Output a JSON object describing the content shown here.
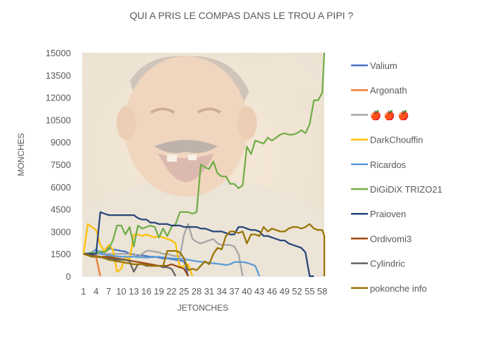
{
  "chart_data": {
    "type": "line",
    "title": "QUI A PRIS LE COMPAS DANS LE TROU A PIPI ?",
    "xlabel": "JETONCHES",
    "ylabel": "MONCHES",
    "ylim": [
      0,
      15000
    ],
    "yticks": [
      "0",
      "1500",
      "3000",
      "4500",
      "6000",
      "7500",
      "9000",
      "10500",
      "12000",
      "13500",
      "15000"
    ],
    "xtick_labels": [
      "1",
      "4",
      "7",
      "10",
      "13",
      "16",
      "19",
      "22",
      "25",
      "28",
      "31",
      "34",
      "37",
      "40",
      "43",
      "46",
      "49",
      "52",
      "55",
      "58"
    ],
    "x_range": [
      1,
      58
    ],
    "grid": false,
    "legend_position": "right",
    "background_image": "laughing-man-photo",
    "series": [
      {
        "name": "Valium",
        "color": "#4472C4",
        "points": [
          [
            1,
            1500
          ],
          [
            3,
            1500
          ],
          [
            5,
            1500
          ],
          [
            6,
            1700
          ],
          [
            7,
            1900
          ],
          [
            8,
            1800
          ],
          [
            9,
            1750
          ],
          [
            10,
            1700
          ],
          [
            11,
            1650
          ],
          [
            12,
            1500
          ],
          [
            13,
            1450
          ],
          [
            14,
            1400
          ],
          [
            15,
            1400
          ],
          [
            16,
            1350
          ],
          [
            17,
            1300
          ],
          [
            18,
            1300
          ],
          [
            19,
            1250
          ],
          [
            20,
            1200
          ],
          [
            21,
            1200
          ],
          [
            22,
            1150
          ],
          [
            23,
            1100
          ],
          [
            24,
            1050
          ],
          [
            25,
            1000
          ],
          [
            26,
            0
          ]
        ]
      },
      {
        "name": "Argonath",
        "color": "#ED7D31",
        "points": [
          [
            1,
            1500
          ],
          [
            2,
            1400
          ],
          [
            3,
            1400
          ],
          [
            4,
            1300
          ],
          [
            5,
            0
          ]
        ]
      },
      {
        "name": "🍎 🍎 🍎",
        "color": "#A5A5A5",
        "points": [
          [
            1,
            1500
          ],
          [
            4,
            1500
          ],
          [
            7,
            1500
          ],
          [
            10,
            1500
          ],
          [
            13,
            1500
          ],
          [
            14,
            1300
          ],
          [
            15,
            1500
          ],
          [
            16,
            1700
          ],
          [
            17,
            1700
          ],
          [
            18,
            1650
          ],
          [
            19,
            1600
          ],
          [
            20,
            1500
          ],
          [
            21,
            1500
          ],
          [
            22,
            1400
          ],
          [
            23,
            1350
          ],
          [
            24,
            1300
          ],
          [
            25,
            2800
          ],
          [
            26,
            3500
          ],
          [
            27,
            2500
          ],
          [
            28,
            2300
          ],
          [
            29,
            2200
          ],
          [
            30,
            2300
          ],
          [
            31,
            2400
          ],
          [
            32,
            2500
          ],
          [
            33,
            2200
          ],
          [
            34,
            2100
          ],
          [
            35,
            2100
          ],
          [
            36,
            2100
          ],
          [
            37,
            2000
          ],
          [
            38,
            1500
          ],
          [
            39,
            0
          ]
        ]
      },
      {
        "name": "DarkChouffin",
        "color": "#FFC000",
        "points": [
          [
            1,
            1500
          ],
          [
            2,
            3500
          ],
          [
            3,
            3300
          ],
          [
            4,
            3100
          ],
          [
            5,
            2100
          ],
          [
            6,
            1700
          ],
          [
            7,
            2100
          ],
          [
            8,
            1800
          ],
          [
            9,
            300
          ],
          [
            10,
            500
          ],
          [
            11,
            1300
          ],
          [
            12,
            1100
          ],
          [
            13,
            2800
          ],
          [
            14,
            2800
          ],
          [
            15,
            2700
          ],
          [
            16,
            2800
          ],
          [
            17,
            2700
          ],
          [
            18,
            2600
          ],
          [
            19,
            2700
          ],
          [
            20,
            2600
          ],
          [
            21,
            2500
          ],
          [
            22,
            2400
          ],
          [
            23,
            2200
          ],
          [
            24,
            600
          ],
          [
            25,
            700
          ],
          [
            26,
            800
          ],
          [
            27,
            0
          ]
        ]
      },
      {
        "name": "Ricardos",
        "color": "#5B9BD5",
        "points": [
          [
            1,
            1500
          ],
          [
            3,
            1600
          ],
          [
            4,
            1800
          ],
          [
            5,
            1500
          ],
          [
            7,
            1400
          ],
          [
            10,
            1300
          ],
          [
            13,
            1300
          ],
          [
            16,
            1250
          ],
          [
            19,
            1300
          ],
          [
            22,
            1200
          ],
          [
            25,
            1150
          ],
          [
            28,
            1000
          ],
          [
            31,
            900
          ],
          [
            34,
            800
          ],
          [
            35,
            750
          ],
          [
            36,
            800
          ],
          [
            37,
            950
          ],
          [
            38,
            950
          ],
          [
            39,
            950
          ],
          [
            40,
            900
          ],
          [
            41,
            800
          ],
          [
            42,
            700
          ],
          [
            43,
            0
          ]
        ]
      },
      {
        "name": "DiGiDiX TRIZO21",
        "color": "#70AD47",
        "points": [
          [
            1,
            1500
          ],
          [
            2,
            1500
          ],
          [
            3,
            1600
          ],
          [
            4,
            1500
          ],
          [
            5,
            1700
          ],
          [
            6,
            1600
          ],
          [
            7,
            1800
          ],
          [
            8,
            2400
          ],
          [
            9,
            3400
          ],
          [
            10,
            3400
          ],
          [
            11,
            2800
          ],
          [
            12,
            3300
          ],
          [
            13,
            2000
          ],
          [
            14,
            3400
          ],
          [
            15,
            3200
          ],
          [
            16,
            3300
          ],
          [
            17,
            3400
          ],
          [
            18,
            3300
          ],
          [
            19,
            2600
          ],
          [
            20,
            3200
          ],
          [
            21,
            2700
          ],
          [
            22,
            3300
          ],
          [
            23,
            3500
          ],
          [
            24,
            4300
          ],
          [
            25,
            4300
          ],
          [
            26,
            4300
          ],
          [
            27,
            4200
          ],
          [
            28,
            4300
          ],
          [
            29,
            7500
          ],
          [
            30,
            7300
          ],
          [
            31,
            7200
          ],
          [
            32,
            7700
          ],
          [
            33,
            6900
          ],
          [
            34,
            6700
          ],
          [
            35,
            6700
          ],
          [
            36,
            6200
          ],
          [
            37,
            6200
          ],
          [
            38,
            5900
          ],
          [
            39,
            6100
          ],
          [
            40,
            8700
          ],
          [
            41,
            8200
          ],
          [
            42,
            9100
          ],
          [
            43,
            9000
          ],
          [
            44,
            8900
          ],
          [
            45,
            9300
          ],
          [
            46,
            9100
          ],
          [
            47,
            9300
          ],
          [
            48,
            9500
          ],
          [
            49,
            9600
          ],
          [
            50,
            9500
          ],
          [
            51,
            9500
          ],
          [
            52,
            9600
          ],
          [
            53,
            9800
          ],
          [
            54,
            9600
          ],
          [
            55,
            10200
          ],
          [
            56,
            11800
          ],
          [
            57,
            11800
          ],
          [
            58,
            12300
          ],
          [
            59,
            15000
          ]
        ]
      },
      {
        "name": "Praioven",
        "color": "#264478",
        "points": [
          [
            1,
            1500
          ],
          [
            2,
            1500
          ],
          [
            3,
            1500
          ],
          [
            4,
            1500
          ],
          [
            5,
            4300
          ],
          [
            6,
            4200
          ],
          [
            7,
            4100
          ],
          [
            8,
            4100
          ],
          [
            9,
            4100
          ],
          [
            10,
            4100
          ],
          [
            11,
            4100
          ],
          [
            12,
            4100
          ],
          [
            13,
            4100
          ],
          [
            14,
            3900
          ],
          [
            15,
            3800
          ],
          [
            16,
            3800
          ],
          [
            17,
            3600
          ],
          [
            18,
            3600
          ],
          [
            19,
            3500
          ],
          [
            20,
            3500
          ],
          [
            21,
            3500
          ],
          [
            22,
            3400
          ],
          [
            23,
            3400
          ],
          [
            24,
            3400
          ],
          [
            25,
            3300
          ],
          [
            26,
            3300
          ],
          [
            27,
            3300
          ],
          [
            28,
            3300
          ],
          [
            29,
            3200
          ],
          [
            30,
            3200
          ],
          [
            31,
            3100
          ],
          [
            32,
            3000
          ],
          [
            33,
            3000
          ],
          [
            34,
            3000
          ],
          [
            35,
            2900
          ],
          [
            36,
            2800
          ],
          [
            37,
            2800
          ],
          [
            38,
            3300
          ],
          [
            39,
            3300
          ],
          [
            40,
            3200
          ],
          [
            41,
            3100
          ],
          [
            42,
            3100
          ],
          [
            43,
            3000
          ],
          [
            44,
            2700
          ],
          [
            45,
            2700
          ],
          [
            46,
            2600
          ],
          [
            47,
            2500
          ],
          [
            48,
            2400
          ],
          [
            49,
            2400
          ],
          [
            50,
            2200
          ],
          [
            51,
            2100
          ],
          [
            52,
            2000
          ],
          [
            53,
            1900
          ],
          [
            54,
            1600
          ],
          [
            55,
            0
          ],
          [
            56,
            0
          ]
        ]
      },
      {
        "name": "Ordivomi3",
        "color": "#9E480E",
        "points": [
          [
            1,
            1500
          ],
          [
            3,
            1400
          ],
          [
            5,
            1300
          ],
          [
            7,
            1300
          ],
          [
            9,
            1200
          ],
          [
            11,
            1100
          ],
          [
            13,
            1000
          ],
          [
            15,
            900
          ],
          [
            17,
            800
          ],
          [
            19,
            700
          ],
          [
            21,
            700
          ],
          [
            22,
            800
          ],
          [
            23,
            700
          ],
          [
            24,
            600
          ],
          [
            25,
            500
          ],
          [
            26,
            0
          ]
        ]
      },
      {
        "name": "Cylindric",
        "color": "#636363",
        "points": [
          [
            1,
            1500
          ],
          [
            4,
            1300
          ],
          [
            7,
            1200
          ],
          [
            9,
            1100
          ],
          [
            11,
            1100
          ],
          [
            12,
            1000
          ],
          [
            13,
            300
          ],
          [
            14,
            800
          ],
          [
            15,
            800
          ],
          [
            16,
            700
          ],
          [
            17,
            700
          ],
          [
            18,
            700
          ],
          [
            19,
            700
          ],
          [
            20,
            600
          ],
          [
            21,
            600
          ],
          [
            22,
            500
          ],
          [
            23,
            0
          ]
        ]
      },
      {
        "name": "pokonche info",
        "color": "#997300",
        "points": [
          [
            1,
            1500
          ],
          [
            3,
            1300
          ],
          [
            5,
            1300
          ],
          [
            7,
            1100
          ],
          [
            9,
            1000
          ],
          [
            11,
            900
          ],
          [
            13,
            800
          ],
          [
            15,
            800
          ],
          [
            17,
            700
          ],
          [
            19,
            700
          ],
          [
            20,
            700
          ],
          [
            21,
            1700
          ],
          [
            22,
            1700
          ],
          [
            23,
            1700
          ],
          [
            24,
            1600
          ],
          [
            25,
            1200
          ],
          [
            26,
            400
          ],
          [
            27,
            500
          ],
          [
            28,
            400
          ],
          [
            29,
            700
          ],
          [
            30,
            1000
          ],
          [
            31,
            800
          ],
          [
            32,
            1500
          ],
          [
            33,
            1900
          ],
          [
            34,
            1800
          ],
          [
            35,
            2700
          ],
          [
            36,
            3000
          ],
          [
            37,
            3000
          ],
          [
            38,
            2900
          ],
          [
            39,
            3000
          ],
          [
            40,
            2200
          ],
          [
            41,
            2800
          ],
          [
            42,
            2800
          ],
          [
            43,
            2700
          ],
          [
            44,
            3300
          ],
          [
            45,
            3000
          ],
          [
            46,
            3200
          ],
          [
            47,
            3100
          ],
          [
            48,
            3000
          ],
          [
            49,
            3000
          ],
          [
            50,
            3200
          ],
          [
            51,
            3300
          ],
          [
            52,
            3300
          ],
          [
            53,
            3200
          ],
          [
            54,
            3300
          ],
          [
            55,
            3500
          ],
          [
            56,
            3200
          ],
          [
            57,
            3100
          ],
          [
            58,
            3100
          ],
          [
            59,
            2700
          ],
          [
            60,
            0
          ]
        ]
      }
    ]
  }
}
